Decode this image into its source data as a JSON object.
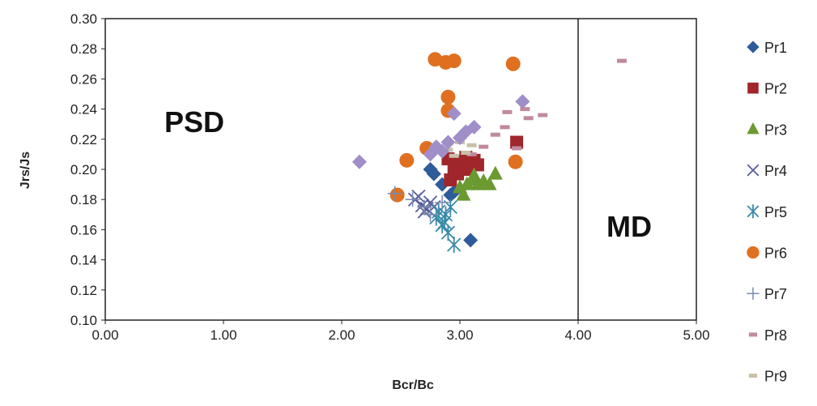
{
  "chart_data": {
    "type": "scatter",
    "xlabel": "Bcr/Bc",
    "ylabel": "Jrs/Js",
    "xlim": [
      0,
      5
    ],
    "ylim": [
      0.1,
      0.3
    ],
    "xticks": [
      "0.00",
      "1.00",
      "2.00",
      "3.00",
      "4.00",
      "5.00"
    ],
    "yticks": [
      "0.10",
      "0.12",
      "0.14",
      "0.16",
      "0.18",
      "0.20",
      "0.22",
      "0.24",
      "0.26",
      "0.28",
      "0.30"
    ],
    "grid": false,
    "legend": "right",
    "annotations": [
      {
        "text": "PSD",
        "x": 0.85,
        "y": 0.235
      },
      {
        "text": "MD",
        "x": 4.5,
        "y": 0.163
      }
    ],
    "reference_lines": [
      {
        "x": 4.0
      }
    ],
    "series": [
      {
        "name": "Pr1",
        "marker": "diamond",
        "color": "#2e5b9a",
        "points": [
          [
            2.75,
            0.2
          ],
          [
            3.09,
            0.153
          ],
          [
            2.92,
            0.183
          ],
          [
            2.85,
            0.19
          ],
          [
            2.78,
            0.197
          ],
          [
            2.95,
            0.185
          ]
        ]
      },
      {
        "name": "Pr2",
        "marker": "square",
        "color": "#a0262c",
        "points": [
          [
            3.48,
            0.218
          ],
          [
            2.92,
            0.193
          ],
          [
            2.95,
            0.2
          ],
          [
            3.0,
            0.205
          ],
          [
            3.05,
            0.208
          ],
          [
            3.12,
            0.206
          ],
          [
            3.15,
            0.203
          ],
          [
            2.9,
            0.207
          ],
          [
            2.98,
            0.197
          ],
          [
            3.08,
            0.2
          ]
        ]
      },
      {
        "name": "Pr3",
        "marker": "triangle",
        "color": "#6a9a30",
        "points": [
          [
            3.03,
            0.183
          ],
          [
            3.06,
            0.19
          ],
          [
            3.1,
            0.193
          ],
          [
            3.15,
            0.19
          ],
          [
            3.2,
            0.192
          ],
          [
            3.3,
            0.197
          ],
          [
            3.0,
            0.188
          ],
          [
            3.12,
            0.196
          ],
          [
            3.25,
            0.19
          ]
        ]
      },
      {
        "name": "Pr4",
        "marker": "x",
        "color": "#5a5f9a",
        "points": [
          [
            2.62,
            0.18
          ],
          [
            2.68,
            0.176
          ],
          [
            2.72,
            0.174
          ],
          [
            2.75,
            0.178
          ],
          [
            2.7,
            0.172
          ],
          [
            2.65,
            0.182
          ],
          [
            2.78,
            0.175
          ]
        ]
      },
      {
        "name": "Pr5",
        "marker": "asterisk",
        "color": "#3a8aa8",
        "points": [
          [
            2.8,
            0.168
          ],
          [
            2.85,
            0.163
          ],
          [
            2.88,
            0.17
          ],
          [
            2.9,
            0.158
          ],
          [
            2.95,
            0.15
          ],
          [
            2.82,
            0.172
          ],
          [
            2.92,
            0.175
          ],
          [
            2.87,
            0.165
          ]
        ]
      },
      {
        "name": "Pr6",
        "marker": "circle",
        "color": "#e07020",
        "points": [
          [
            2.79,
            0.273
          ],
          [
            2.88,
            0.271
          ],
          [
            2.95,
            0.272
          ],
          [
            3.45,
            0.27
          ],
          [
            2.9,
            0.248
          ],
          [
            2.9,
            0.239
          ],
          [
            2.72,
            0.214
          ],
          [
            2.55,
            0.206
          ],
          [
            3.47,
            0.205
          ],
          [
            2.47,
            0.183
          ]
        ]
      },
      {
        "name": "Pr7",
        "marker": "plus",
        "color": "#7a8ab0",
        "points": [
          [
            2.45,
            0.184
          ],
          [
            2.7,
            0.175
          ],
          [
            2.6,
            0.18
          ],
          [
            2.75,
            0.17
          ],
          [
            2.85,
            0.178
          ]
        ]
      },
      {
        "name": "Pr8",
        "marker": "dash",
        "color": "#c08aa0",
        "points": [
          [
            4.37,
            0.272
          ],
          [
            3.4,
            0.238
          ],
          [
            3.55,
            0.24
          ],
          [
            3.58,
            0.234
          ],
          [
            3.7,
            0.236
          ],
          [
            3.38,
            0.228
          ],
          [
            3.3,
            0.223
          ],
          [
            3.2,
            0.215
          ],
          [
            3.48,
            0.214
          ],
          [
            3.1,
            0.21
          ]
        ]
      },
      {
        "name": "Pr9",
        "marker": "dash",
        "color": "#c8c0a8",
        "points": [
          [
            2.9,
            0.213
          ],
          [
            3.0,
            0.218
          ],
          [
            3.05,
            0.211
          ],
          [
            3.1,
            0.216
          ],
          [
            2.95,
            0.209
          ]
        ]
      },
      {
        "marker": "diamond",
        "color": "#9f8ec8",
        "points": [
          [
            2.15,
            0.205
          ],
          [
            3.53,
            0.245
          ],
          [
            2.95,
            0.237
          ],
          [
            3.05,
            0.225
          ],
          [
            3.12,
            0.228
          ],
          [
            2.8,
            0.215
          ],
          [
            2.9,
            0.218
          ],
          [
            2.75,
            0.21
          ],
          [
            3.0,
            0.221
          ],
          [
            2.85,
            0.212
          ]
        ]
      }
    ]
  }
}
